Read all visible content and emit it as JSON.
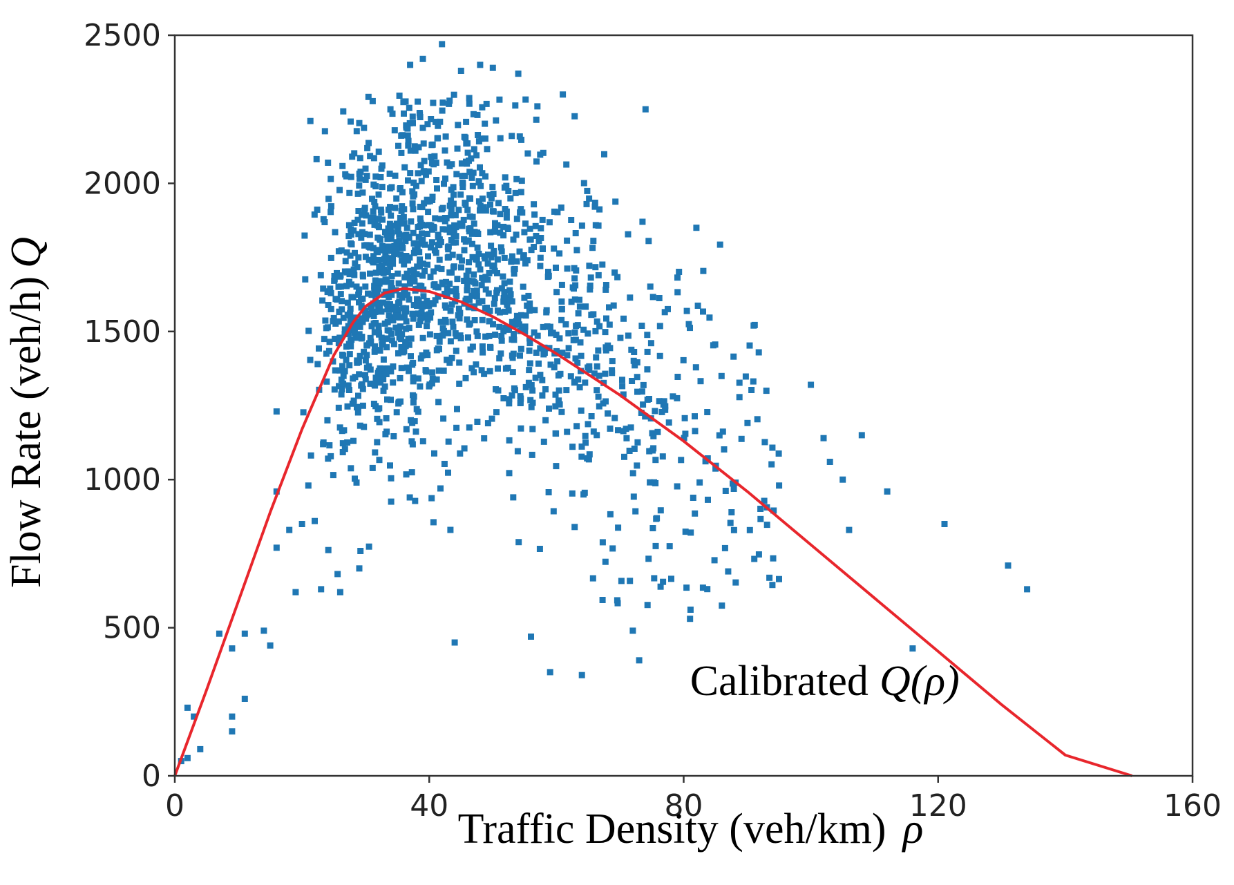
{
  "chart_data": {
    "type": "scatter",
    "title": "",
    "xlabel": "Traffic Density (veh/km)",
    "xlabel_symbol": "ρ",
    "ylabel": "Flow Rate (veh/h)",
    "ylabel_symbol": "Q",
    "xlim": [
      0,
      160
    ],
    "ylim": [
      0,
      2500
    ],
    "xticks": [
      0,
      40,
      80,
      120,
      160
    ],
    "yticks": [
      0,
      500,
      1000,
      1500,
      2000,
      2500
    ],
    "xtick_labels": [
      "0",
      "40",
      "80",
      "120",
      "160"
    ],
    "ytick_labels": [
      "0",
      "500",
      "1000",
      "1500",
      "2000",
      "2500"
    ],
    "grid": false,
    "legend": "none",
    "colors": {
      "points": "#1f77b4",
      "curve": "#e8262c",
      "axes": "#333333"
    },
    "scatter_series": {
      "name": "",
      "generator": {
        "count": 1600,
        "core_count": 1300,
        "seed": 7
      },
      "explicit_points": [
        [
          1,
          50
        ],
        [
          2,
          60
        ],
        [
          2,
          230
        ],
        [
          3,
          200
        ],
        [
          4,
          90
        ],
        [
          7,
          480
        ],
        [
          9,
          430
        ],
        [
          9,
          200
        ],
        [
          9,
          150
        ],
        [
          11,
          260
        ],
        [
          11,
          480
        ],
        [
          14,
          490
        ],
        [
          15,
          440
        ],
        [
          16,
          770
        ],
        [
          16,
          960
        ],
        [
          16,
          1230
        ],
        [
          18,
          830
        ],
        [
          19,
          620
        ],
        [
          20,
          850
        ],
        [
          21,
          980
        ],
        [
          22,
          860
        ],
        [
          23,
          630
        ],
        [
          24,
          1200
        ],
        [
          26,
          620
        ],
        [
          29,
          700
        ],
        [
          44,
          450
        ],
        [
          56,
          470
        ],
        [
          59,
          350
        ],
        [
          64,
          340
        ],
        [
          72,
          490
        ],
        [
          73,
          390
        ],
        [
          74,
          2250
        ],
        [
          81,
          530
        ],
        [
          82,
          1850
        ],
        [
          87,
          690
        ],
        [
          91,
          1520
        ],
        [
          93,
          1300
        ],
        [
          95,
          980
        ],
        [
          100,
          1320
        ],
        [
          102,
          1140
        ],
        [
          103,
          1060
        ],
        [
          105,
          1000
        ],
        [
          106,
          830
        ],
        [
          108,
          1150
        ],
        [
          112,
          960
        ],
        [
          116,
          430
        ],
        [
          121,
          850
        ],
        [
          131,
          710
        ],
        [
          134,
          630
        ],
        [
          42,
          2470
        ],
        [
          45,
          2380
        ],
        [
          48,
          2400
        ],
        [
          50,
          2390
        ],
        [
          54,
          2370
        ],
        [
          61,
          2300
        ],
        [
          39,
          2420
        ],
        [
          37,
          2400
        ],
        [
          57,
          2260
        ]
      ]
    },
    "curve_series": {
      "name": "",
      "x": [
        0,
        5,
        10,
        15,
        20,
        25,
        28,
        30,
        33,
        36,
        40,
        45,
        50,
        55,
        60,
        70,
        80,
        90,
        100,
        110,
        120,
        130,
        140,
        150.5
      ],
      "y": [
        0,
        290,
        590,
        890,
        1170,
        1420,
        1530,
        1585,
        1630,
        1645,
        1635,
        1600,
        1550,
        1490,
        1425,
        1285,
        1130,
        960,
        780,
        600,
        420,
        240,
        70,
        0
      ]
    },
    "annotation": {
      "text": "Calibrated",
      "symbol": "Q(ρ)",
      "x": 81,
      "y": 320
    }
  }
}
